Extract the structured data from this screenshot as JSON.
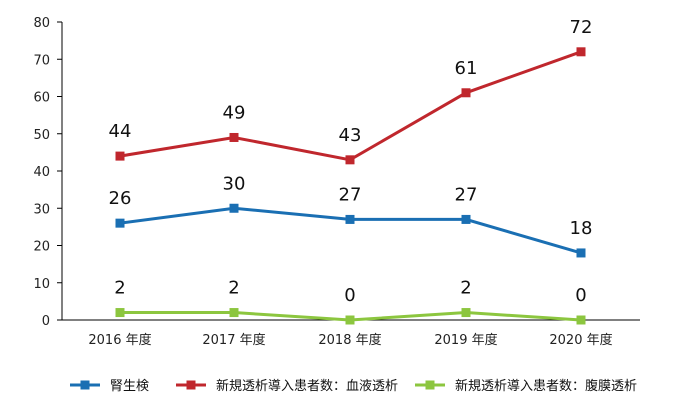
{
  "chart_data": {
    "type": "line",
    "categories": [
      "2016 年度",
      "2017 年度",
      "2018 年度",
      "2019 年度",
      "2020 年度"
    ],
    "ylim": [
      0,
      80
    ],
    "yticks": [
      0,
      10,
      20,
      30,
      40,
      50,
      60,
      70,
      80
    ],
    "grid": false,
    "legend_position": "bottom",
    "series": [
      {
        "name": "腎生検",
        "color": "#1a6fb3",
        "values": [
          26,
          30,
          27,
          27,
          18
        ]
      },
      {
        "name": "新規透析導入患者数：血液透析",
        "color": "#c0272d",
        "values": [
          44,
          49,
          43,
          61,
          72
        ]
      },
      {
        "name": "新規透析導入患者数：腹膜透析",
        "color": "#8cc63f",
        "values": [
          2,
          2,
          0,
          2,
          0
        ]
      }
    ]
  }
}
